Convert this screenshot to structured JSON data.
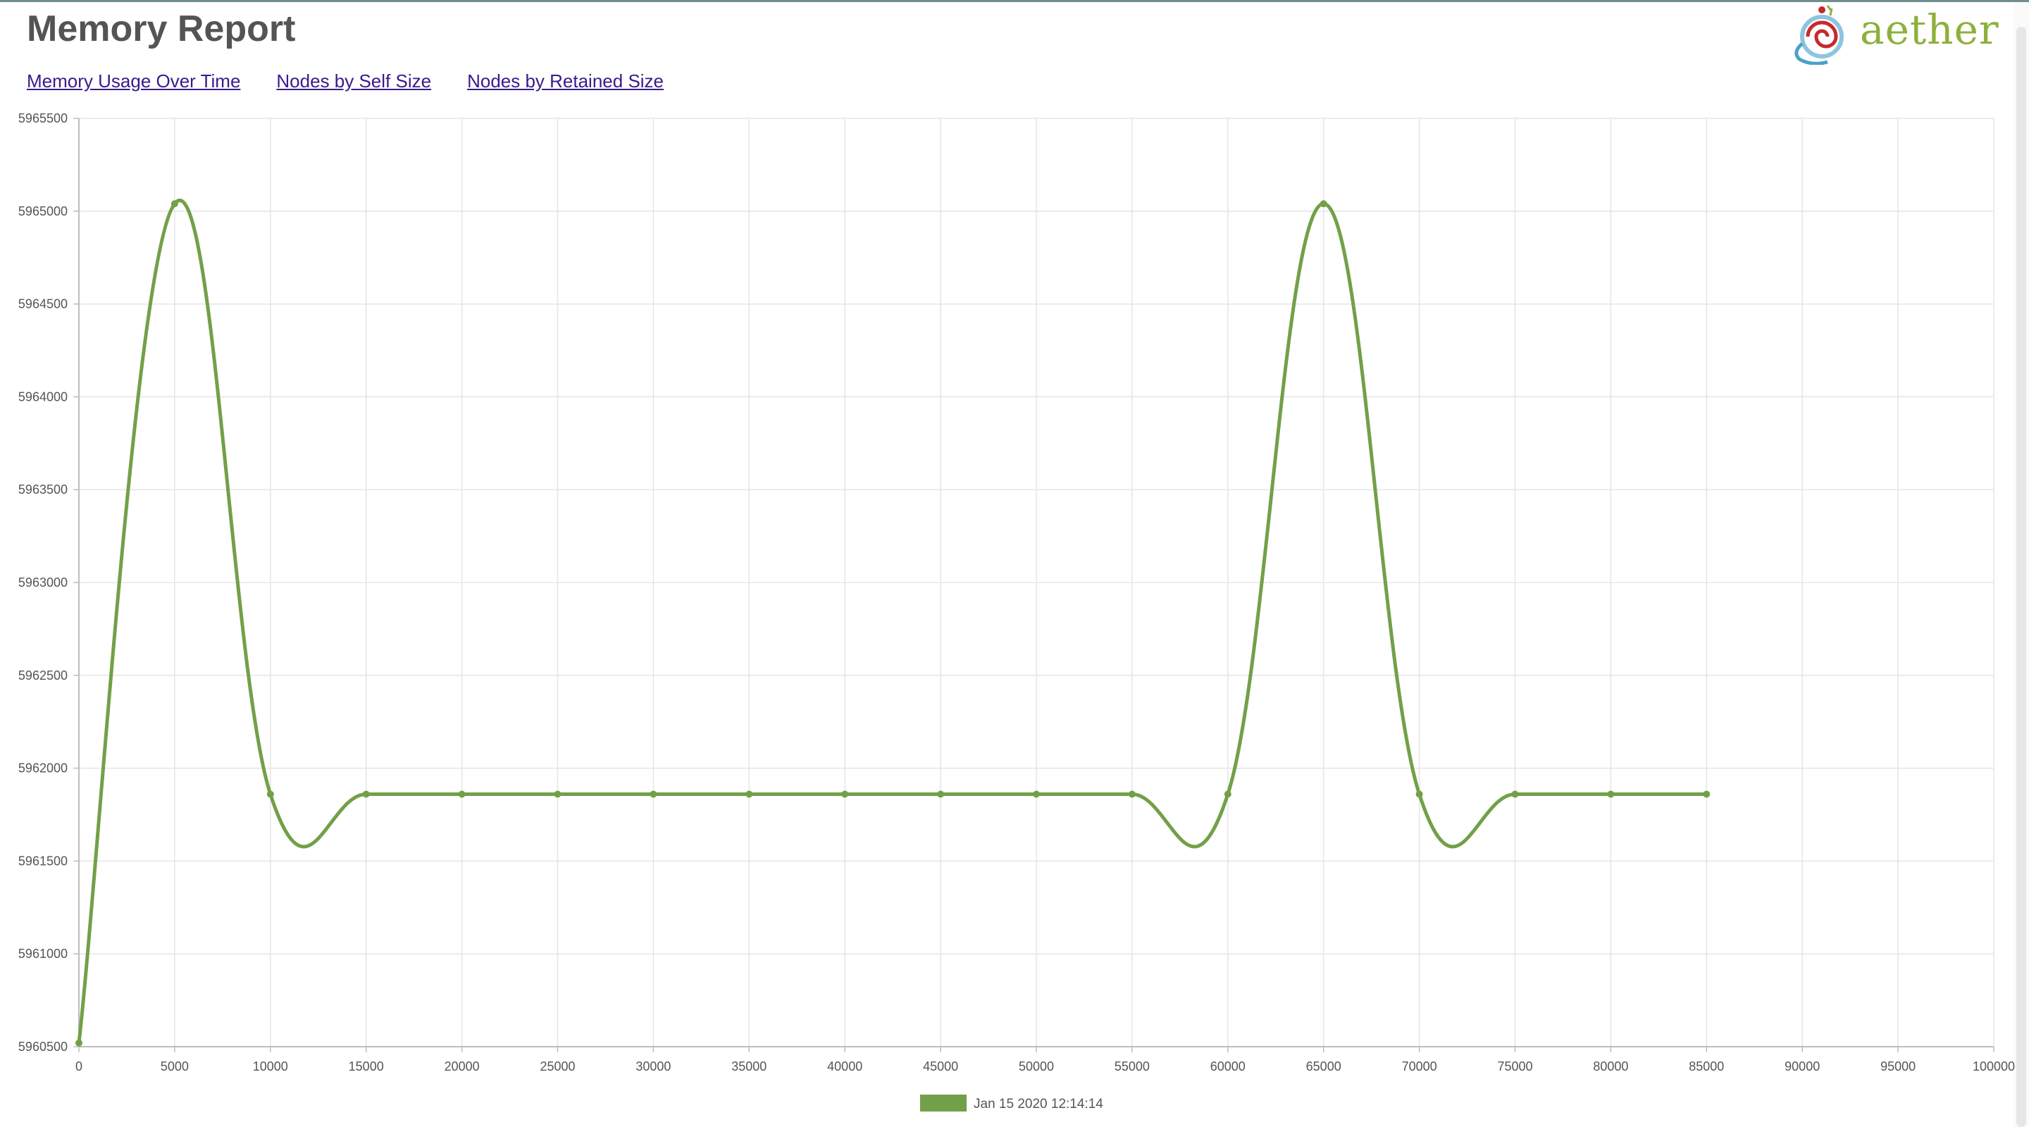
{
  "header": {
    "title": "Memory Report",
    "logo_text": "aether"
  },
  "nav": {
    "items": [
      "Memory Usage Over Time",
      "Nodes by Self Size",
      "Nodes by Retained Size"
    ]
  },
  "colors": {
    "series": "#72a048",
    "grid": "#e5e5e5",
    "axis": "#bdbdbd",
    "link": "#3b1a8a"
  },
  "chart_data": {
    "type": "line",
    "title": "",
    "xlabel": "",
    "ylabel": "",
    "xlim": [
      0,
      100000
    ],
    "ylim": [
      5960500,
      5965500
    ],
    "x_ticks": [
      0,
      5000,
      10000,
      15000,
      20000,
      25000,
      30000,
      35000,
      40000,
      45000,
      50000,
      55000,
      60000,
      65000,
      70000,
      75000,
      80000,
      85000,
      90000,
      95000,
      100000
    ],
    "y_ticks": [
      5960500,
      5961000,
      5961500,
      5962000,
      5962500,
      5963000,
      5963500,
      5964000,
      5964500,
      5965000,
      5965500
    ],
    "legend_position": "bottom",
    "grid": true,
    "series": [
      {
        "name": "Jan 15 2020 12:14:14",
        "x": [
          0,
          5000,
          10000,
          15000,
          20000,
          25000,
          30000,
          35000,
          40000,
          45000,
          50000,
          55000,
          60000,
          65000,
          70000,
          75000,
          80000,
          85000
        ],
        "values": [
          5960520,
          5965040,
          5961860,
          5961860,
          5961860,
          5961860,
          5961860,
          5961860,
          5961860,
          5961860,
          5961860,
          5961860,
          5961860,
          5965040,
          5961860,
          5961860,
          5961860,
          5961860
        ]
      }
    ]
  }
}
